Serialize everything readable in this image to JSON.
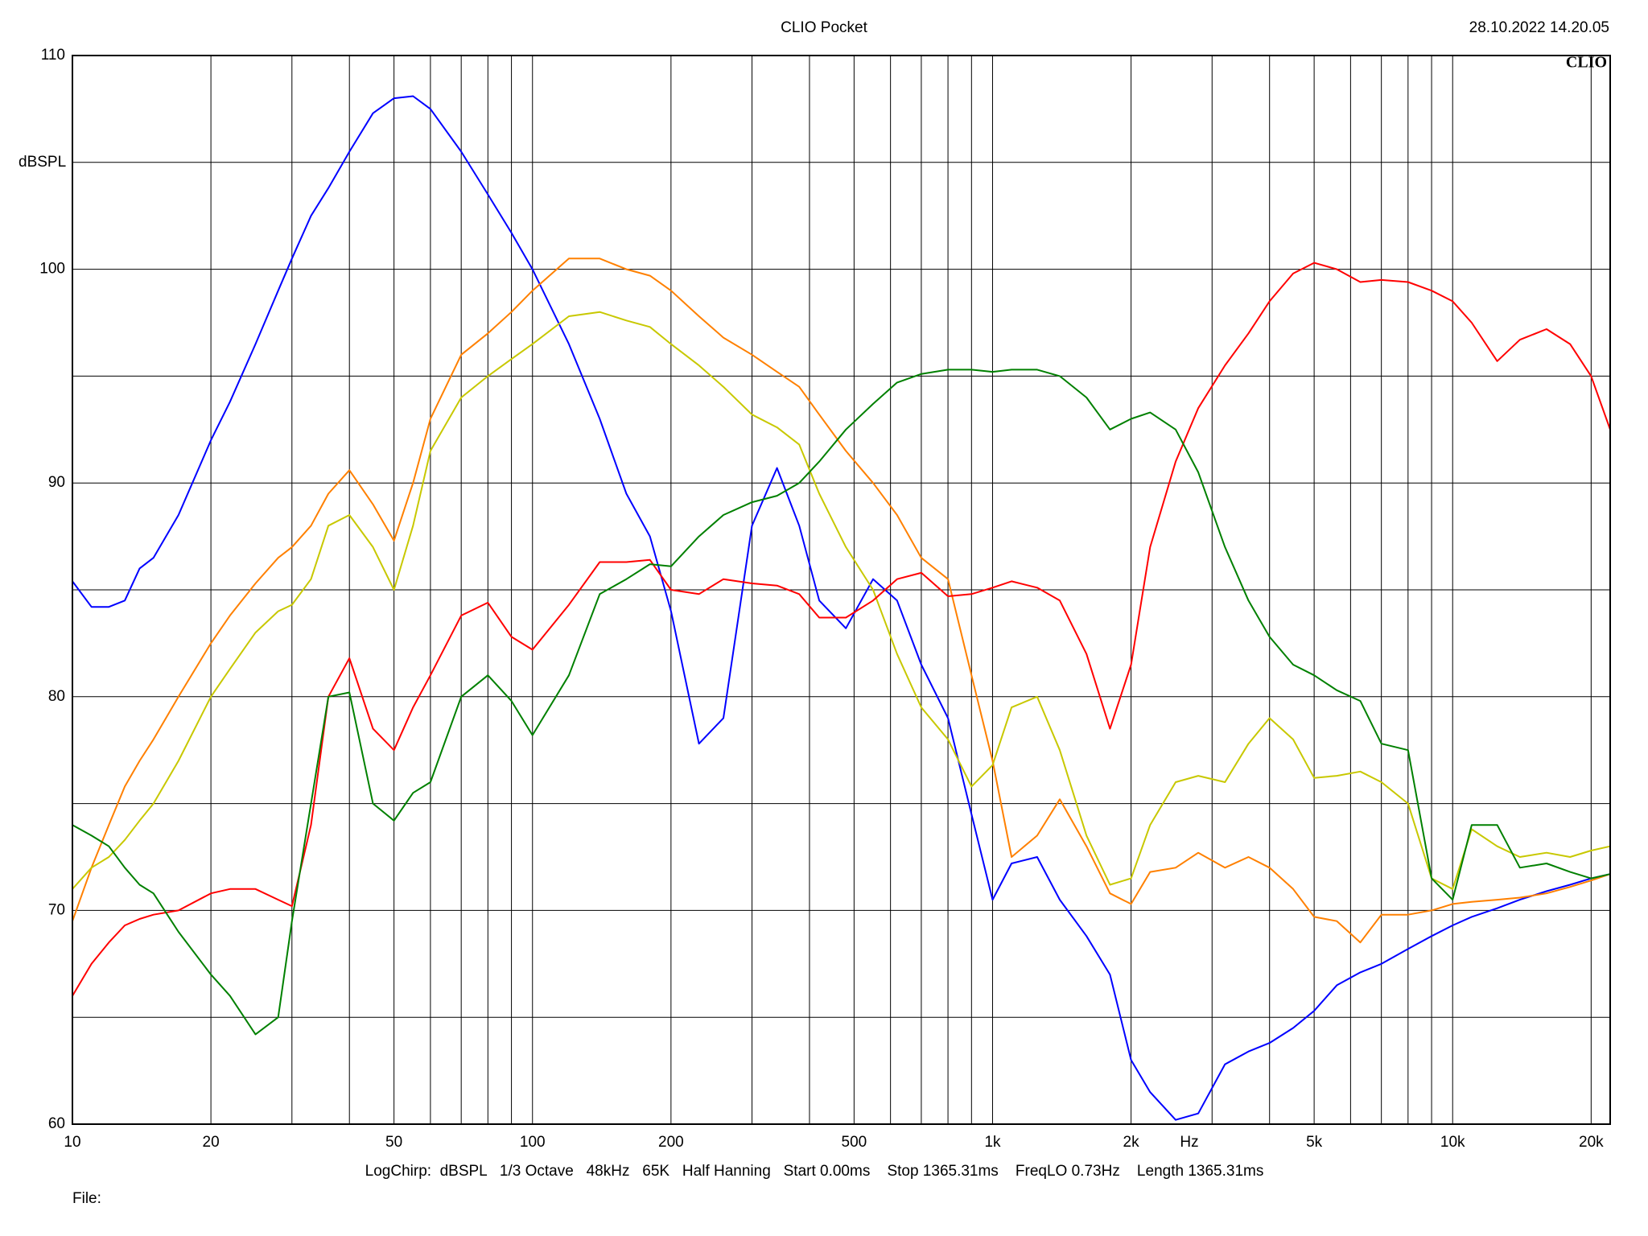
{
  "chart_data": {
    "type": "line",
    "title": "CLIO Pocket",
    "timestamp": "28.10.2022 14.20.05",
    "logo": "CLIO",
    "y_label": "dBSPL",
    "x_unit": "Hz",
    "footer": "LogChirp:  dBSPL   1/3 Octave   48kHz   65K   Half Hanning   Start 0.00ms    Stop 1365.31ms    FreqLO 0.73Hz    Length 1365.31ms",
    "file_label": "File:",
    "xscale": "log",
    "xlim": [
      10,
      22000
    ],
    "ylim": [
      60,
      110
    ],
    "yticks": [
      60,
      70,
      80,
      90,
      100,
      110
    ],
    "yminor": [
      65,
      75,
      85,
      95,
      105
    ],
    "xticks": [
      10,
      20,
      50,
      100,
      200,
      500,
      {
        "value": 1000,
        "label": "1k"
      },
      {
        "value": 2000,
        "label": "2k"
      },
      {
        "value": 5000,
        "label": "5k"
      },
      {
        "value": 10000,
        "label": "10k"
      },
      {
        "value": 20000,
        "label": "20k"
      }
    ],
    "xminor": [
      30,
      40,
      60,
      70,
      80,
      90,
      300,
      400,
      600,
      700,
      800,
      900,
      3000,
      4000,
      6000,
      7000,
      8000,
      9000
    ],
    "grid": true,
    "x": [
      10,
      11,
      12,
      13,
      14,
      15,
      17,
      20,
      22,
      25,
      28,
      30,
      33,
      36,
      40,
      45,
      50,
      55,
      60,
      70,
      80,
      90,
      100,
      120,
      140,
      160,
      180,
      200,
      230,
      260,
      300,
      340,
      380,
      420,
      480,
      550,
      620,
      700,
      800,
      900,
      1000,
      1100,
      1250,
      1400,
      1600,
      1800,
      2000,
      2200,
      2500,
      2800,
      3200,
      3600,
      4000,
      4500,
      5000,
      5600,
      6300,
      7000,
      8000,
      9000,
      10000,
      11000,
      12500,
      14000,
      16000,
      18000,
      20000,
      22000
    ],
    "series": [
      {
        "color": "#0000ff",
        "values": [
          85.4,
          84.2,
          84.2,
          84.5,
          86,
          86.5,
          88.5,
          92,
          93.8,
          96.5,
          99,
          100.5,
          102.5,
          103.8,
          105.5,
          107.3,
          108,
          108.1,
          107.5,
          105.5,
          103.5,
          101.7,
          100,
          96.5,
          93,
          89.5,
          87.5,
          84,
          77.8,
          79,
          88,
          90.7,
          88,
          84.5,
          83.2,
          85.5,
          84.5,
          81.5,
          79,
          74.5,
          70.5,
          72.2,
          72.5,
          70.5,
          68.8,
          67,
          63,
          61.5,
          60.2,
          60.5,
          62.8,
          63.4,
          63.8,
          64.5,
          65.3,
          66.5,
          67.1,
          67.5,
          68.2,
          68.8,
          69.3,
          69.7,
          70.1,
          70.5,
          70.9,
          71.2,
          71.5,
          71.7
        ]
      },
      {
        "color": "#ff8000",
        "values": [
          69.5,
          72,
          74,
          75.8,
          77,
          78,
          80,
          82.5,
          83.8,
          85.3,
          86.5,
          87,
          88,
          89.5,
          90.6,
          89,
          87.3,
          90,
          93,
          96,
          97,
          98,
          99,
          100.5,
          100.5,
          100,
          99.7,
          99,
          97.8,
          96.8,
          96,
          95.2,
          94.5,
          93.2,
          91.5,
          90,
          88.5,
          86.5,
          85.5,
          81,
          77,
          72.5,
          73.5,
          75.2,
          73,
          70.8,
          70.3,
          71.8,
          72,
          72.7,
          72,
          72.5,
          72,
          71,
          69.7,
          69.5,
          68.5,
          69.8,
          69.8,
          70,
          70.3,
          70.4,
          70.5,
          70.6,
          70.8,
          71.1,
          71.4,
          71.7
        ]
      },
      {
        "color": "#c8c800",
        "values": [
          71,
          72,
          72.5,
          73.3,
          74.2,
          75,
          77,
          80,
          81.3,
          83,
          84,
          84.3,
          85.5,
          88,
          88.5,
          87,
          85,
          88,
          91.5,
          94,
          95,
          95.8,
          96.5,
          97.8,
          98,
          97.6,
          97.3,
          96.5,
          95.5,
          94.5,
          93.2,
          92.6,
          91.8,
          89.5,
          87,
          85,
          82,
          79.5,
          78,
          75.8,
          76.8,
          79.5,
          80,
          77.5,
          73.5,
          71.2,
          71.5,
          74,
          76,
          76.3,
          76,
          77.8,
          79,
          78,
          76.2,
          76.3,
          76.5,
          76,
          75,
          71.5,
          71,
          73.8,
          73,
          72.5,
          72.7,
          72.5,
          72.8,
          73
        ]
      },
      {
        "color": "#ff0000",
        "values": [
          66,
          67.5,
          68.5,
          69.3,
          69.6,
          69.8,
          70,
          70.8,
          71,
          71,
          70.5,
          70.2,
          74,
          80,
          81.8,
          78.5,
          77.5,
          79.5,
          81,
          83.8,
          84.4,
          82.8,
          82.2,
          84.3,
          86.3,
          86.3,
          86.4,
          85,
          84.8,
          85.5,
          85.3,
          85.2,
          84.8,
          83.7,
          83.7,
          84.5,
          85.5,
          85.8,
          84.7,
          84.8,
          85.1,
          85.4,
          85.1,
          84.5,
          82,
          78.5,
          81.5,
          87,
          91,
          93.5,
          95.5,
          97,
          98.5,
          99.8,
          100.3,
          100,
          99.4,
          99.5,
          99.4,
          99,
          98.5,
          97.5,
          95.7,
          96.7,
          97.2,
          96.5,
          95,
          92.5
        ]
      },
      {
        "color": "#008000",
        "values": [
          74,
          73.5,
          73,
          72,
          71.2,
          70.8,
          69,
          67,
          66,
          64.2,
          65,
          69.5,
          75,
          80,
          80.2,
          75,
          74.2,
          75.5,
          76,
          80,
          81,
          79.8,
          78.2,
          81,
          84.8,
          85.5,
          86.2,
          86.1,
          87.5,
          88.5,
          89.1,
          89.4,
          90,
          91,
          92.5,
          93.7,
          94.7,
          95.1,
          95.3,
          95.3,
          95.2,
          95.3,
          95.3,
          95,
          94,
          92.5,
          93,
          93.3,
          92.5,
          90.5,
          87,
          84.5,
          82.8,
          81.5,
          81,
          80.3,
          79.8,
          77.8,
          77.5,
          71.5,
          70.5,
          74,
          74,
          72,
          72.2,
          71.8,
          71.5,
          71.7
        ]
      }
    ]
  }
}
